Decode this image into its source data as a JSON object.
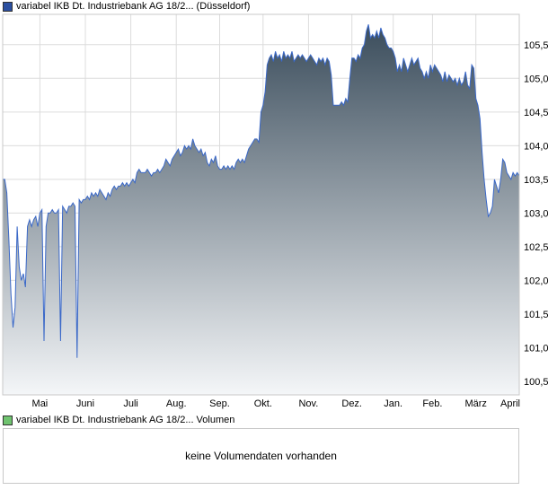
{
  "colors": {
    "price_swatch": "#2b4fa0",
    "volume_swatch": "#6fc36f",
    "line": "#3a68c8",
    "area_top": "#3b4d5c",
    "area_bottom": "#f4f6f8",
    "grid": "#dcdcdc",
    "frame": "#c8c8c8"
  },
  "legend": {
    "price": "variabel IKB Dt. Industriebank AG 18/2... (Düsseldorf)",
    "volume": "variabel IKB Dt. Industriebank AG 18/2... Volumen"
  },
  "volume_panel": {
    "message": "keine Volumendaten vorhanden"
  },
  "chart_data": {
    "type": "area",
    "x_unit": "trading day index (first visible day = 0, last = 250)",
    "xlim": [
      0,
      250
    ],
    "ylim": [
      100.3,
      105.95
    ],
    "grid": true,
    "y_ticks": [
      100.5,
      101.0,
      101.5,
      102.0,
      102.5,
      103.0,
      103.5,
      104.0,
      104.5,
      105.0,
      105.5
    ],
    "y_tick_labels": [
      "100,5",
      "101,0",
      "101,5",
      "102,0",
      "102,5",
      "103,0",
      "103,5",
      "104,0",
      "104,5",
      "105,0",
      "105,5"
    ],
    "x_ticks": [
      {
        "label": "Mai",
        "x": 18
      },
      {
        "label": "Juni",
        "x": 40
      },
      {
        "label": "Juli",
        "x": 62
      },
      {
        "label": "Aug.",
        "x": 84
      },
      {
        "label": "Sep.",
        "x": 105
      },
      {
        "label": "Okt.",
        "x": 126
      },
      {
        "label": "Nov.",
        "x": 148
      },
      {
        "label": "Dez.",
        "x": 169
      },
      {
        "label": "Jan.",
        "x": 189
      },
      {
        "label": "Feb.",
        "x": 208
      },
      {
        "label": "März",
        "x": 229
      },
      {
        "label": "April",
        "x": 251
      }
    ],
    "series": [
      {
        "values": [
          [
            0,
            103.5
          ],
          [
            1,
            103.5
          ],
          [
            2,
            103.3
          ],
          [
            3,
            102.6
          ],
          [
            4,
            101.8
          ],
          [
            5,
            101.3
          ],
          [
            6,
            101.6
          ],
          [
            7,
            102.8
          ],
          [
            8,
            102.2
          ],
          [
            9,
            102.0
          ],
          [
            10,
            102.1
          ],
          [
            11,
            101.9
          ],
          [
            12,
            102.8
          ],
          [
            13,
            102.9
          ],
          [
            14,
            102.8
          ],
          [
            15,
            102.9
          ],
          [
            16,
            102.95
          ],
          [
            17,
            102.8
          ],
          [
            18,
            103.0
          ],
          [
            19,
            103.05
          ],
          [
            20,
            101.1
          ],
          [
            21,
            102.8
          ],
          [
            22,
            103.0
          ],
          [
            23,
            103.0
          ],
          [
            24,
            103.05
          ],
          [
            25,
            103.0
          ],
          [
            26,
            103.0
          ],
          [
            27,
            103.05
          ],
          [
            28,
            101.1
          ],
          [
            29,
            103.1
          ],
          [
            30,
            103.05
          ],
          [
            31,
            103.0
          ],
          [
            32,
            103.1
          ],
          [
            33,
            103.1
          ],
          [
            34,
            103.15
          ],
          [
            35,
            103.1
          ],
          [
            36,
            100.85
          ],
          [
            37,
            103.2
          ],
          [
            38,
            103.15
          ],
          [
            39,
            103.2
          ],
          [
            40,
            103.2
          ],
          [
            41,
            103.25
          ],
          [
            42,
            103.2
          ],
          [
            43,
            103.3
          ],
          [
            44,
            103.25
          ],
          [
            45,
            103.3
          ],
          [
            46,
            103.25
          ],
          [
            47,
            103.35
          ],
          [
            48,
            103.3
          ],
          [
            49,
            103.25
          ],
          [
            50,
            103.2
          ],
          [
            51,
            103.3
          ],
          [
            52,
            103.25
          ],
          [
            53,
            103.35
          ],
          [
            54,
            103.4
          ],
          [
            55,
            103.35
          ],
          [
            56,
            103.4
          ],
          [
            57,
            103.4
          ],
          [
            58,
            103.45
          ],
          [
            59,
            103.4
          ],
          [
            60,
            103.45
          ],
          [
            61,
            103.4
          ],
          [
            62,
            103.45
          ],
          [
            63,
            103.5
          ],
          [
            64,
            103.45
          ],
          [
            65,
            103.6
          ],
          [
            66,
            103.65
          ],
          [
            67,
            103.6
          ],
          [
            68,
            103.6
          ],
          [
            69,
            103.6
          ],
          [
            70,
            103.65
          ],
          [
            71,
            103.6
          ],
          [
            72,
            103.55
          ],
          [
            73,
            103.6
          ],
          [
            74,
            103.6
          ],
          [
            75,
            103.65
          ],
          [
            76,
            103.6
          ],
          [
            77,
            103.65
          ],
          [
            78,
            103.7
          ],
          [
            79,
            103.8
          ],
          [
            80,
            103.75
          ],
          [
            81,
            103.7
          ],
          [
            82,
            103.8
          ],
          [
            83,
            103.85
          ],
          [
            84,
            103.9
          ],
          [
            85,
            103.95
          ],
          [
            86,
            103.85
          ],
          [
            87,
            103.9
          ],
          [
            88,
            104.0
          ],
          [
            89,
            103.95
          ],
          [
            90,
            104.0
          ],
          [
            91,
            103.95
          ],
          [
            92,
            104.1
          ],
          [
            93,
            104.0
          ],
          [
            94,
            103.95
          ],
          [
            95,
            103.9
          ],
          [
            96,
            103.95
          ],
          [
            97,
            103.85
          ],
          [
            98,
            103.9
          ],
          [
            99,
            103.75
          ],
          [
            100,
            103.7
          ],
          [
            101,
            103.8
          ],
          [
            102,
            103.75
          ],
          [
            103,
            103.85
          ],
          [
            104,
            103.7
          ],
          [
            105,
            103.65
          ],
          [
            106,
            103.65
          ],
          [
            107,
            103.7
          ],
          [
            108,
            103.65
          ],
          [
            109,
            103.7
          ],
          [
            110,
            103.65
          ],
          [
            111,
            103.7
          ],
          [
            112,
            103.65
          ],
          [
            113,
            103.75
          ],
          [
            114,
            103.8
          ],
          [
            115,
            103.75
          ],
          [
            116,
            103.8
          ],
          [
            117,
            103.75
          ],
          [
            118,
            103.85
          ],
          [
            119,
            103.95
          ],
          [
            120,
            104.0
          ],
          [
            121,
            104.05
          ],
          [
            122,
            104.1
          ],
          [
            123,
            104.1
          ],
          [
            124,
            104.05
          ],
          [
            125,
            104.5
          ],
          [
            126,
            104.6
          ],
          [
            127,
            104.8
          ],
          [
            128,
            105.2
          ],
          [
            129,
            105.3
          ],
          [
            130,
            105.35
          ],
          [
            131,
            105.25
          ],
          [
            132,
            105.4
          ],
          [
            133,
            105.3
          ],
          [
            134,
            105.35
          ],
          [
            135,
            105.25
          ],
          [
            136,
            105.4
          ],
          [
            137,
            105.3
          ],
          [
            138,
            105.35
          ],
          [
            139,
            105.3
          ],
          [
            140,
            105.4
          ],
          [
            141,
            105.25
          ],
          [
            142,
            105.3
          ],
          [
            143,
            105.35
          ],
          [
            144,
            105.3
          ],
          [
            145,
            105.35
          ],
          [
            146,
            105.3
          ],
          [
            147,
            105.25
          ],
          [
            148,
            105.3
          ],
          [
            149,
            105.35
          ],
          [
            150,
            105.3
          ],
          [
            151,
            105.25
          ],
          [
            152,
            105.2
          ],
          [
            153,
            105.3
          ],
          [
            154,
            105.25
          ],
          [
            155,
            105.3
          ],
          [
            156,
            105.2
          ],
          [
            157,
            105.3
          ],
          [
            158,
            105.25
          ],
          [
            159,
            105.05
          ],
          [
            160,
            104.6
          ],
          [
            161,
            104.6
          ],
          [
            162,
            104.6
          ],
          [
            163,
            104.6
          ],
          [
            164,
            104.65
          ],
          [
            165,
            104.6
          ],
          [
            166,
            104.7
          ],
          [
            167,
            104.65
          ],
          [
            168,
            105.0
          ],
          [
            169,
            105.3
          ],
          [
            170,
            105.3
          ],
          [
            171,
            105.25
          ],
          [
            172,
            105.35
          ],
          [
            173,
            105.3
          ],
          [
            174,
            105.45
          ],
          [
            175,
            105.5
          ],
          [
            176,
            105.7
          ],
          [
            177,
            105.8
          ],
          [
            178,
            105.6
          ],
          [
            179,
            105.65
          ],
          [
            180,
            105.6
          ],
          [
            181,
            105.7
          ],
          [
            182,
            105.6
          ],
          [
            183,
            105.75
          ],
          [
            184,
            105.65
          ],
          [
            185,
            105.6
          ],
          [
            186,
            105.5
          ],
          [
            187,
            105.45
          ],
          [
            188,
            105.45
          ],
          [
            189,
            105.4
          ],
          [
            190,
            105.3
          ],
          [
            191,
            105.1
          ],
          [
            192,
            105.2
          ],
          [
            193,
            105.1
          ],
          [
            194,
            105.3
          ],
          [
            195,
            105.2
          ],
          [
            196,
            105.1
          ],
          [
            197,
            105.2
          ],
          [
            198,
            105.3
          ],
          [
            199,
            105.2
          ],
          [
            200,
            105.25
          ],
          [
            201,
            105.3
          ],
          [
            202,
            105.15
          ],
          [
            203,
            105.1
          ],
          [
            204,
            105.0
          ],
          [
            205,
            105.1
          ],
          [
            206,
            105.0
          ],
          [
            207,
            105.2
          ],
          [
            208,
            105.1
          ],
          [
            209,
            105.2
          ],
          [
            210,
            105.15
          ],
          [
            211,
            105.1
          ],
          [
            212,
            105.05
          ],
          [
            213,
            104.95
          ],
          [
            214,
            105.1
          ],
          [
            215,
            104.95
          ],
          [
            216,
            105.05
          ],
          [
            217,
            105.0
          ],
          [
            218,
            104.95
          ],
          [
            219,
            105.0
          ],
          [
            220,
            104.9
          ],
          [
            221,
            105.0
          ],
          [
            222,
            104.9
          ],
          [
            223,
            104.95
          ],
          [
            224,
            105.1
          ],
          [
            225,
            104.9
          ],
          [
            226,
            104.85
          ],
          [
            227,
            105.2
          ],
          [
            228,
            105.15
          ],
          [
            229,
            104.7
          ],
          [
            230,
            104.6
          ],
          [
            231,
            104.4
          ],
          [
            232,
            103.9
          ],
          [
            233,
            103.5
          ],
          [
            234,
            103.2
          ],
          [
            235,
            102.95
          ],
          [
            236,
            103.0
          ],
          [
            237,
            103.1
          ],
          [
            238,
            103.5
          ],
          [
            239,
            103.4
          ],
          [
            240,
            103.3
          ],
          [
            241,
            103.5
          ],
          [
            242,
            103.8
          ],
          [
            243,
            103.75
          ],
          [
            244,
            103.6
          ],
          [
            245,
            103.55
          ],
          [
            246,
            103.5
          ],
          [
            247,
            103.6
          ],
          [
            248,
            103.55
          ],
          [
            249,
            103.6
          ],
          [
            250,
            103.55
          ]
        ]
      }
    ]
  }
}
